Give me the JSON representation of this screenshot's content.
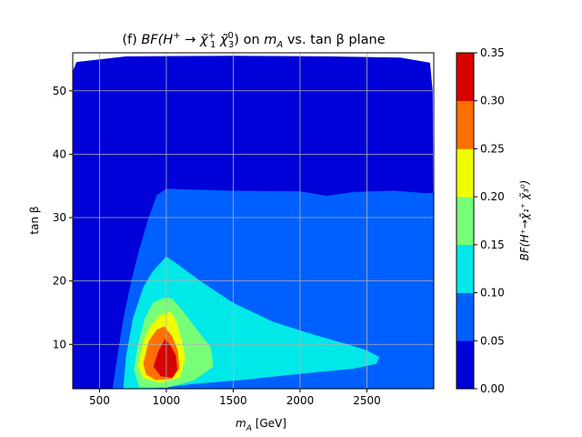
{
  "chart_data": {
    "type": "heatmap",
    "panel": "(f)",
    "title": "(f) BF(H⁺→χ̃₁⁺ χ̃₃⁰) on mₐ vs. tan β plane",
    "title_parts": {
      "prefix": "(f) ",
      "bf": "BF(H",
      "sup_plus": "+",
      "arrow": " → ",
      "chi1": "χ̃",
      "chi1_sub": "1",
      "chi1_sup": "+",
      "chi3": " χ̃",
      "chi3_sub": "3",
      "chi3_sup": "0",
      "close": ")",
      "mid": " on ",
      "ma_m": "m",
      "ma_sub": "A",
      "suffix": " vs. tan β plane"
    },
    "xlabel": {
      "m": "m",
      "sub": "A",
      "unit": " [GeV]"
    },
    "ylabel": "tan β",
    "colorbar_label": "BF(H⁺→χ̃₁⁺ χ̃₃⁰)",
    "xlim": [
      300,
      3000
    ],
    "ylim": [
      3,
      56
    ],
    "xticks": [
      500,
      1000,
      1500,
      2000,
      2500
    ],
    "yticks": [
      10,
      20,
      30,
      40,
      50
    ],
    "colorbar_ticks": [
      "0.00",
      "0.05",
      "0.10",
      "0.15",
      "0.20",
      "0.25",
      "0.30",
      "0.35"
    ],
    "levels": [
      0.0,
      0.05,
      0.1,
      0.15,
      0.2,
      0.25,
      0.3,
      0.35
    ],
    "colors": [
      "#0000d8",
      "#0060ff",
      "#00e8e8",
      "#78ff78",
      "#f0ff00",
      "#ff7000",
      "#d80000"
    ],
    "grid": true,
    "regions": [
      {
        "level_index": 0,
        "polygon": [
          [
            330,
            54.5
          ],
          [
            700,
            55.4
          ],
          [
            1500,
            55.5
          ],
          [
            2200,
            55.4
          ],
          [
            2750,
            55.2
          ],
          [
            2970,
            54.4
          ],
          [
            2990,
            50
          ],
          [
            3000,
            3
          ],
          [
            300,
            3
          ],
          [
            300,
            53
          ]
        ]
      },
      {
        "level_index": 1,
        "polygon": [
          [
            600,
            3
          ],
          [
            635,
            8
          ],
          [
            680,
            14
          ],
          [
            740,
            20
          ],
          [
            800,
            25
          ],
          [
            870,
            30
          ],
          [
            930,
            33.5
          ],
          [
            1000,
            34.5
          ],
          [
            1500,
            34.2
          ],
          [
            2000,
            34.1
          ],
          [
            2200,
            33.4
          ],
          [
            2400,
            34
          ],
          [
            2700,
            34.2
          ],
          [
            2950,
            33.8
          ],
          [
            3000,
            33.9
          ],
          [
            3000,
            3
          ]
        ]
      },
      {
        "level_index": 2,
        "polygon": [
          [
            680,
            3
          ],
          [
            700,
            8
          ],
          [
            750,
            14
          ],
          [
            830,
            19
          ],
          [
            900,
            21.5
          ],
          [
            1000,
            23.8
          ],
          [
            1070,
            22.8
          ],
          [
            1250,
            20
          ],
          [
            1500,
            16.5
          ],
          [
            1800,
            13.5
          ],
          [
            2100,
            11.5
          ],
          [
            2350,
            10
          ],
          [
            2500,
            9
          ],
          [
            2590,
            8
          ],
          [
            2570,
            7
          ],
          [
            2400,
            6.2
          ],
          [
            2200,
            5.8
          ],
          [
            2000,
            5.4
          ],
          [
            1600,
            4.5
          ],
          [
            1200,
            3.8
          ],
          [
            1000,
            3.3
          ],
          [
            850,
            3
          ]
        ]
      },
      {
        "level_index": 3,
        "polygon": [
          [
            760,
            6
          ],
          [
            790,
            10
          ],
          [
            840,
            14
          ],
          [
            900,
            16.5
          ],
          [
            980,
            17.3
          ],
          [
            1040,
            17.2
          ],
          [
            1120,
            15.3
          ],
          [
            1220,
            12.5
          ],
          [
            1330,
            9.5
          ],
          [
            1350,
            6.5
          ],
          [
            1200,
            4.3
          ],
          [
            1000,
            3.2
          ],
          [
            800,
            3.3
          ]
        ]
      },
      {
        "level_index": 4,
        "polygon": [
          [
            790,
            6.5
          ],
          [
            830,
            10.5
          ],
          [
            880,
            12.8
          ],
          [
            950,
            14.5
          ],
          [
            1030,
            15.1
          ],
          [
            1070,
            13.8
          ],
          [
            1115,
            10.5
          ],
          [
            1140,
            7.8
          ],
          [
            1100,
            4.8
          ],
          [
            950,
            4
          ],
          [
            830,
            4.7
          ]
        ]
      },
      {
        "level_index": 5,
        "polygon": [
          [
            830,
            7
          ],
          [
            870,
            10.5
          ],
          [
            930,
            12.3
          ],
          [
            985,
            12.8
          ],
          [
            1040,
            11.3
          ],
          [
            1085,
            9
          ],
          [
            1095,
            6.2
          ],
          [
            1040,
            4.6
          ],
          [
            920,
            4.4
          ],
          [
            850,
            5.3
          ]
        ]
      },
      {
        "level_index": 6,
        "polygon": [
          [
            905,
            6.5
          ],
          [
            940,
            8.8
          ],
          [
            990,
            10.8
          ],
          [
            1030,
            9.8
          ],
          [
            1070,
            8.2
          ],
          [
            1080,
            6
          ],
          [
            1045,
            4.8
          ],
          [
            960,
            5
          ]
        ]
      }
    ]
  }
}
